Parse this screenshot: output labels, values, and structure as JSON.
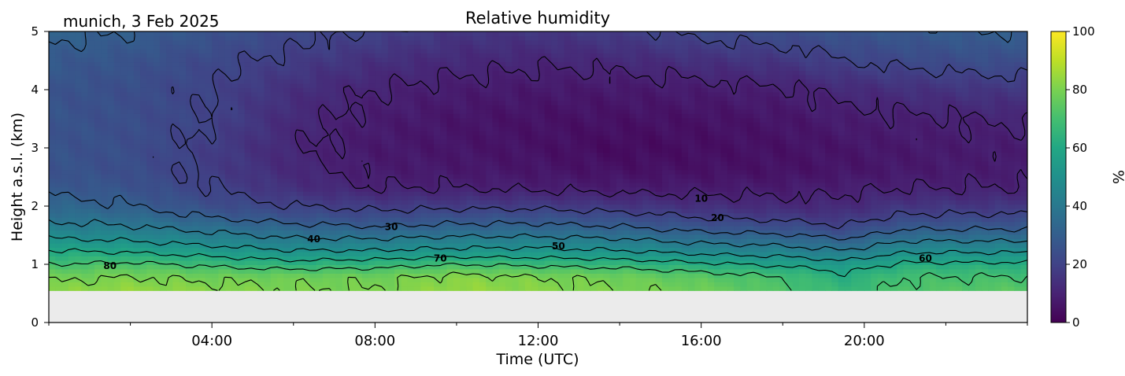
{
  "chart_data": {
    "type": "heatmap",
    "title": "Relative humidity",
    "subtitle": "munich, 3 Feb 2025",
    "xlabel": "Time (UTC)",
    "ylabel": "Height a.s.l. (km)",
    "x_range_hours": [
      0,
      24
    ],
    "xticks": [
      "04:00",
      "08:00",
      "12:00",
      "16:00",
      "20:00"
    ],
    "xtick_hours": [
      4,
      8,
      12,
      16,
      20
    ],
    "ylim": [
      0,
      5
    ],
    "yticks": [
      "0",
      "1",
      "2",
      "3",
      "4",
      "5"
    ],
    "colorbar": {
      "label": "%",
      "range": [
        0,
        100
      ],
      "ticks": [
        "0",
        "20",
        "40",
        "60",
        "80",
        "100"
      ],
      "colormap": "viridis"
    },
    "no_data_below_km": 0.55,
    "contour_levels": [
      10,
      20,
      30,
      40,
      50,
      60,
      70,
      80
    ],
    "contour_labels": [
      {
        "text": "80",
        "x": 1.5,
        "y": 0.97
      },
      {
        "text": "40",
        "x": 6.5,
        "y": 1.43
      },
      {
        "text": "30",
        "x": 8.4,
        "y": 1.64
      },
      {
        "text": "70",
        "x": 9.6,
        "y": 1.1
      },
      {
        "text": "50",
        "x": 12.5,
        "y": 1.31
      },
      {
        "text": "10",
        "x": 16.0,
        "y": 2.13
      },
      {
        "text": "20",
        "x": 16.4,
        "y": 1.8
      },
      {
        "text": "60",
        "x": 21.5,
        "y": 1.1
      }
    ],
    "profile": {
      "heights_km": [
        0.55,
        0.8,
        1.0,
        1.2,
        1.4,
        1.6,
        1.8,
        2.0,
        2.3,
        2.6,
        3.0,
        3.5,
        4.0,
        4.5,
        5.0
      ],
      "times_h": [
        0,
        2,
        4,
        6,
        8,
        10,
        12,
        14,
        16,
        18,
        19.5,
        21,
        23,
        24
      ],
      "rh": [
        [
          82,
          84,
          82,
          80,
          80,
          84,
          82,
          80,
          78,
          72,
          66,
          72,
          74,
          74
        ],
        [
          78,
          80,
          78,
          78,
          78,
          82,
          80,
          78,
          74,
          70,
          62,
          70,
          70,
          70
        ],
        [
          70,
          72,
          68,
          64,
          66,
          70,
          68,
          66,
          62,
          58,
          54,
          62,
          62,
          62
        ],
        [
          62,
          60,
          56,
          52,
          52,
          54,
          54,
          52,
          48,
          46,
          42,
          50,
          50,
          50
        ],
        [
          52,
          50,
          46,
          42,
          42,
          44,
          44,
          42,
          38,
          36,
          32,
          40,
          40,
          40
        ],
        [
          44,
          42,
          38,
          34,
          32,
          34,
          34,
          32,
          28,
          26,
          22,
          30,
          30,
          30
        ],
        [
          38,
          36,
          30,
          26,
          24,
          26,
          26,
          24,
          20,
          18,
          16,
          22,
          22,
          22
        ],
        [
          34,
          30,
          24,
          20,
          18,
          18,
          18,
          16,
          14,
          12,
          12,
          16,
          16,
          16
        ],
        [
          28,
          26,
          20,
          14,
          10,
          10,
          9,
          8,
          8,
          8,
          9,
          10,
          10,
          10
        ],
        [
          26,
          24,
          18,
          12,
          8,
          7,
          6,
          5,
          5,
          5,
          6,
          7,
          8,
          8
        ],
        [
          26,
          24,
          18,
          11,
          7,
          6,
          5,
          3,
          4,
          5,
          6,
          7,
          8,
          8
        ],
        [
          26,
          24,
          20,
          12,
          8,
          6,
          5,
          5,
          5,
          6,
          8,
          9,
          10,
          11
        ],
        [
          26,
          24,
          20,
          14,
          10,
          8,
          7,
          7,
          8,
          9,
          12,
          14,
          16,
          16
        ],
        [
          28,
          26,
          22,
          18,
          14,
          12,
          11,
          12,
          14,
          16,
          20,
          22,
          24,
          24
        ],
        [
          32,
          30,
          26,
          22,
          20,
          16,
          16,
          18,
          22,
          24,
          26,
          28,
          30,
          30
        ]
      ]
    }
  }
}
